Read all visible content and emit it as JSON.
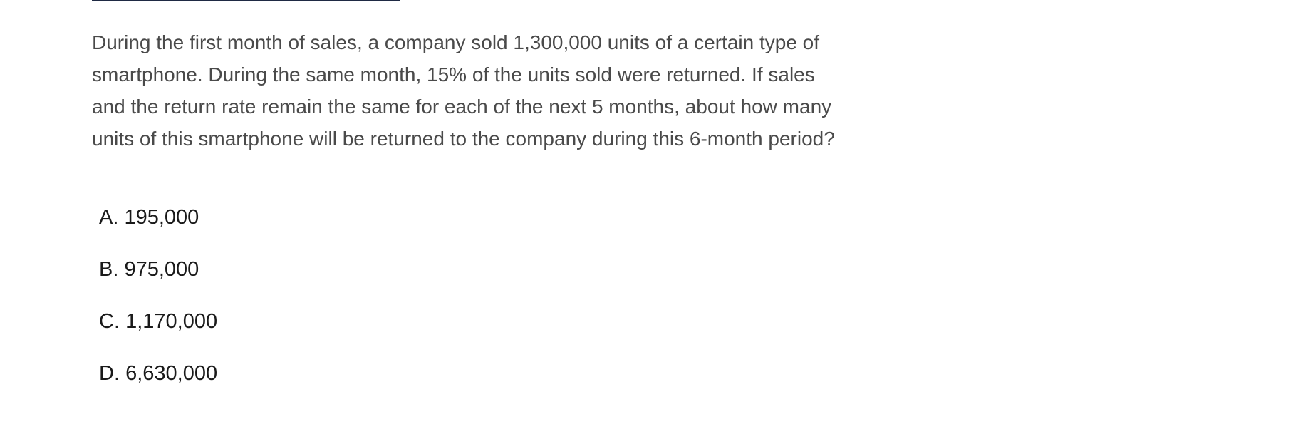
{
  "question": {
    "text": "During the first month of sales, a company sold 1,300,000 units of a certain type of smartphone. During the same month, 15% of the units sold were returned. If sales and the return rate remain the same for each of the next 5 months, about how many units of this smartphone will be returned to the company during this 6-month period?"
  },
  "choices": [
    {
      "label": "A.",
      "value": "195,000"
    },
    {
      "label": "B.",
      "value": "975,000"
    },
    {
      "label": "C.",
      "value": "1,170,000"
    },
    {
      "label": "D.",
      "value": "6,630,000"
    }
  ],
  "colors": {
    "rule": "#1f2a44",
    "question_text": "#4a4a4a",
    "choice_text": "#1a1a1a"
  }
}
